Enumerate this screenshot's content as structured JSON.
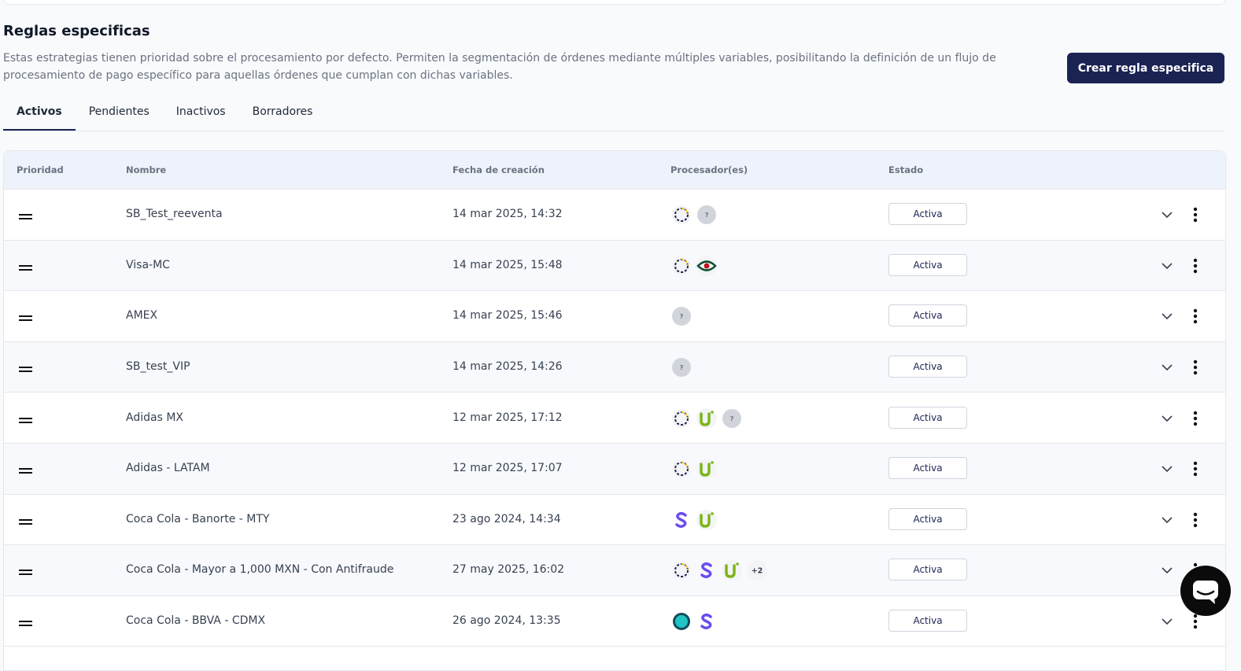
{
  "section": {
    "title": "Reglas especificas",
    "description": "Estas estrategias tienen prioridad sobre el procesamiento por defecto. Permiten la segmentación de órdenes mediante múltiples variables, posibilitando la definición de un flujo de procesamiento de pago específico para aquellas órdenes que cumplan con dichas variables.",
    "button": "Crear regla especifica"
  },
  "tabs": [
    "Activos",
    "Pendientes",
    "Inactivos",
    "Borradores"
  ],
  "table": {
    "headers": [
      "Prioridad",
      "Nombre",
      "Fecha de creación",
      "Procesador(es)",
      "Estado"
    ],
    "unknown_badge": "?",
    "rows": [
      {
        "name": "SB_Test_reeventa",
        "date": "14 mar 2025, 14:32",
        "status": "Activa"
      },
      {
        "name": "Visa-MC",
        "date": "14 mar 2025, 15:48",
        "status": "Activa"
      },
      {
        "name": "AMEX",
        "date": "14 mar 2025, 15:46",
        "status": "Activa"
      },
      {
        "name": "SB_test_VIP",
        "date": "14 mar 2025, 14:26",
        "status": "Activa"
      },
      {
        "name": "Adidas MX",
        "date": "12 mar 2025, 17:12",
        "status": "Activa"
      },
      {
        "name": "Adidas - LATAM",
        "date": "12 mar 2025, 17:07",
        "status": "Activa"
      },
      {
        "name": "Coca Cola - Banorte - MTY",
        "date": "23 ago 2024, 14:34",
        "status": "Activa"
      },
      {
        "name": "Coca Cola - Mayor a 1,000 MXN - Con Antifraude",
        "date": "27 may 2025, 16:02",
        "more": "+2",
        "status": "Activa"
      },
      {
        "name": "Coca Cola - BBVA - CDMX",
        "date": "26 ago 2024, 13:35",
        "status": "Activa"
      }
    ]
  }
}
